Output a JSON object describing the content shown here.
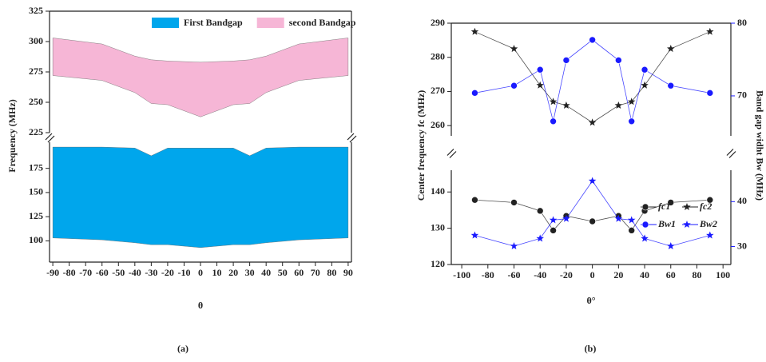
{
  "chart_data": [
    {
      "type": "area-band",
      "caption": "(a)",
      "xlabel": "θ",
      "ylabel": "Frequency (MHz)",
      "x": [
        -90,
        -60,
        -40,
        -30,
        -20,
        0,
        20,
        30,
        40,
        60,
        90
      ],
      "xlim": [
        -92,
        92
      ],
      "xticks": [
        -90,
        -80,
        -70,
        -60,
        -50,
        -40,
        -30,
        -20,
        -10,
        0,
        10,
        20,
        30,
        40,
        50,
        60,
        70,
        80,
        90
      ],
      "panels": [
        {
          "ylim": [
            225,
            325
          ],
          "yticks": [
            225,
            250,
            275,
            300,
            325
          ]
        },
        {
          "ylim": [
            78,
            202
          ],
          "yticks": [
            100,
            125,
            150,
            175
          ]
        }
      ],
      "legend": "top-right",
      "series": [
        {
          "name": "First Bandgap",
          "color": "#00a6ec",
          "panel": 1,
          "upper": [
            197,
            197,
            196,
            188,
            196,
            196,
            196,
            188,
            196,
            197,
            197
          ],
          "lower": [
            103,
            101,
            98,
            96,
            96,
            93,
            96,
            96,
            98,
            101,
            103
          ]
        },
        {
          "name": "second Bandgap",
          "color": "#f6b6d6",
          "panel": 0,
          "upper": [
            303,
            298,
            288,
            285,
            284,
            283,
            284,
            285,
            288,
            298,
            303
          ],
          "lower": [
            272,
            268,
            258,
            249,
            248,
            238,
            248,
            249,
            258,
            268,
            272
          ]
        }
      ]
    },
    {
      "type": "line",
      "caption": "(b)",
      "xlabel": "θ°",
      "ylabel": "Center frequency fc (MHz)",
      "y2label": "Band gap widht Bw (MHz)",
      "x": [
        -90,
        -60,
        -40,
        -30,
        -20,
        0,
        20,
        30,
        40,
        60,
        90
      ],
      "xlim": [
        -108,
        106
      ],
      "xticks": [
        -100,
        -80,
        -60,
        -40,
        -20,
        0,
        20,
        40,
        60,
        80,
        100
      ],
      "panels": [
        {
          "ylim": [
            257,
            290
          ],
          "yticks": [
            260,
            270,
            280,
            290
          ],
          "y2lim": [
            64.5,
            80
          ],
          "y2ticks": [
            70,
            80
          ]
        },
        {
          "ylim": [
            120,
            146
          ],
          "yticks": [
            120,
            130,
            140
          ],
          "y2lim": [
            26,
            47
          ],
          "y2ticks": [
            30,
            40
          ]
        }
      ],
      "y2color": "#1a1aff",
      "series": [
        {
          "name": "fc1",
          "color": "#222222",
          "marker": "circle",
          "panel": 1,
          "axis": "y",
          "values": [
            137.8,
            137.1,
            134.8,
            129.4,
            133.4,
            131.9,
            133.4,
            129.4,
            134.8,
            137.1,
            137.8
          ]
        },
        {
          "name": "fc2",
          "color": "#222222",
          "marker": "star",
          "panel": 0,
          "axis": "y",
          "values": [
            287.5,
            282.5,
            271.8,
            267,
            265.9,
            260.9,
            265.9,
            267,
            271.8,
            282.5,
            287.5
          ]
        },
        {
          "name": "Bw1",
          "color": "#1a1aff",
          "marker": "circle",
          "panel": 0,
          "axis": "y2",
          "values": [
            70.4,
            71.4,
            73.6,
            66.5,
            74.9,
            77.7,
            74.9,
            66.5,
            73.6,
            71.4,
            70.4
          ]
        },
        {
          "name": "Bw2",
          "color": "#1a1aff",
          "marker": "star",
          "panel": 1,
          "axis": "y2",
          "values": [
            32.5,
            30.1,
            31.8,
            35.9,
            36.2,
            44.6,
            36.2,
            35.9,
            31.8,
            30.1,
            32.5
          ]
        }
      ]
    }
  ]
}
